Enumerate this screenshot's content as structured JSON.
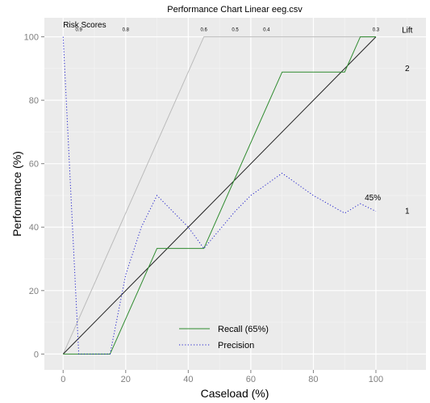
{
  "chart_data": {
    "type": "line",
    "title": "Performance Chart Linear eeg.csv",
    "xlabel": "Caseload (%)",
    "ylabel": "Performance (%)",
    "xlim": [
      -6,
      116
    ],
    "ylim": [
      -5,
      106
    ],
    "x_ticks": [
      0,
      20,
      40,
      60,
      80,
      100
    ],
    "y_ticks": [
      0,
      20,
      40,
      60,
      80,
      100
    ],
    "grid": true,
    "legend_position": "bottom-center",
    "series": [
      {
        "name": "Recall (65%)",
        "style": "solid",
        "color": "#2e8b2e",
        "x": [
          0,
          15,
          30,
          45,
          70,
          90,
          95,
          100
        ],
        "y": [
          0,
          0,
          33.3,
          33.3,
          88.9,
          88.9,
          100,
          100
        ]
      },
      {
        "name": "Precision",
        "style": "dotted",
        "color": "#2222cc",
        "x": [
          0,
          5,
          15,
          20,
          25,
          30,
          40,
          45,
          55,
          60,
          70,
          80,
          90,
          95,
          100
        ],
        "y": [
          100,
          0,
          0,
          25,
          40,
          50,
          40,
          33.3,
          45,
          50,
          57,
          50,
          44.4,
          47.4,
          45
        ]
      },
      {
        "style": "solid",
        "color": "#222222",
        "x": [
          0,
          100
        ],
        "y": [
          0,
          100
        ]
      },
      {
        "style": "solid",
        "color": "#bbbbbb",
        "x": [
          0,
          45,
          100
        ],
        "y": [
          0,
          100,
          100
        ]
      }
    ],
    "annotations": {
      "risk_scores_label": "Risk Scores",
      "risk_scores": [
        {
          "x": 5,
          "text": "0.9"
        },
        {
          "x": 20,
          "text": "0.8"
        },
        {
          "x": 45,
          "text": "0.6"
        },
        {
          "x": 55,
          "text": "0.5"
        },
        {
          "x": 65,
          "text": "0.4"
        },
        {
          "x": 100,
          "text": "0.3"
        }
      ],
      "precision_end_label": {
        "x": 99,
        "y": 48.5,
        "text": "45%"
      },
      "lift_label": "Lift",
      "lift_ticks": [
        {
          "y": 90,
          "text": "2"
        },
        {
          "y": 45,
          "text": "1"
        }
      ]
    }
  }
}
